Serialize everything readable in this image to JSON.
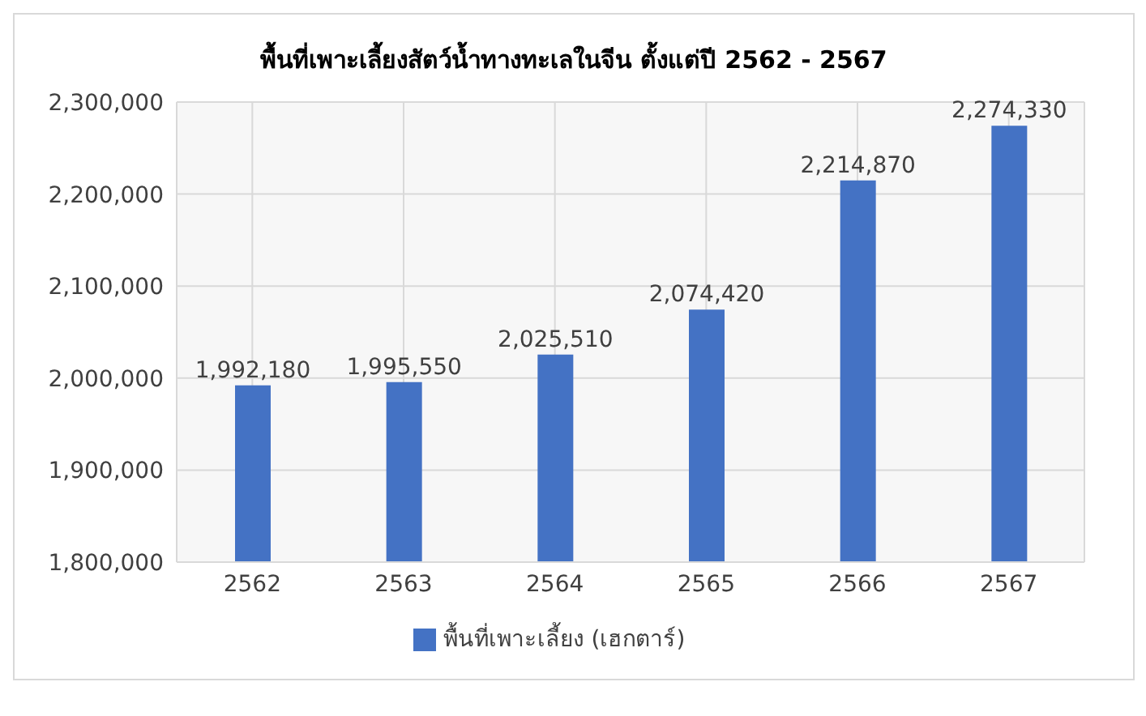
{
  "chart_data": {
    "type": "bar",
    "title": "พื้นที่เพาะเลี้ยงสัตว์น้ำทางทะเลในจีน ตั้งแต่ปี 2562 - 2567",
    "categories": [
      "2562",
      "2563",
      "2564",
      "2565",
      "2566",
      "2567"
    ],
    "series": [
      {
        "name": "พื้นที่เพาะเลี้ยง (เฮกตาร์)",
        "color": "#4472c4",
        "values": [
          1992180,
          1995550,
          2025510,
          2074420,
          2214870,
          2274330
        ],
        "value_labels": [
          "1,992,180",
          "1,995,550",
          "2,025,510",
          "2,074,420",
          "2,214,870",
          "2,274,330"
        ]
      }
    ],
    "ylim": [
      1800000,
      2300000
    ],
    "yticks": [
      {
        "value": 1800000,
        "label": "1,800,000"
      },
      {
        "value": 1900000,
        "label": "1,900,000"
      },
      {
        "value": 2000000,
        "label": "2,000,000"
      },
      {
        "value": 2100000,
        "label": "2,100,000"
      },
      {
        "value": 2200000,
        "label": "2,200,000"
      },
      {
        "value": 2300000,
        "label": "2,300,000"
      }
    ],
    "grid": true,
    "legend": "bottom"
  }
}
